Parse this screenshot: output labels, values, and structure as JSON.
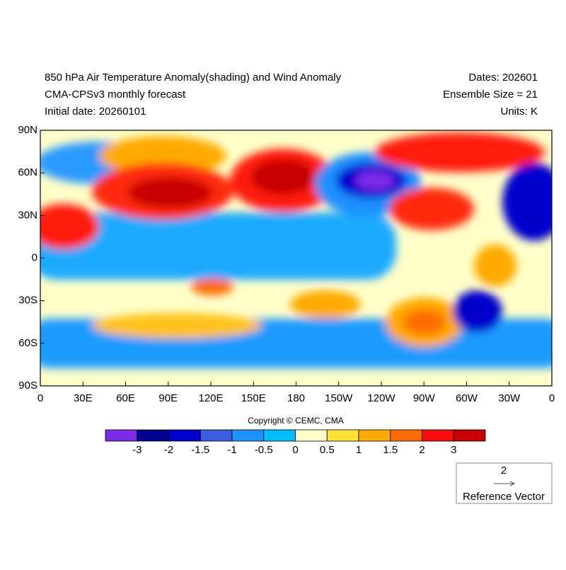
{
  "header": {
    "title": "850 hPa Air Temperature Anomaly(shading) and Wind Anomaly",
    "subtitle": "CMA-CPSv3 monthly forecast",
    "initial_date": "Initial date: 20260101",
    "dates": "Dates: 202601",
    "ensemble": "Ensemble Size = 21",
    "units": "Units: K"
  },
  "map": {
    "xticks": [
      "0",
      "30E",
      "60E",
      "90E",
      "120E",
      "150E",
      "180",
      "150W",
      "120W",
      "90W",
      "60W",
      "30W",
      "0"
    ],
    "yticks": [
      "90N",
      "60N",
      "30N",
      "0",
      "30S",
      "60S",
      "90S"
    ]
  },
  "copyright": "Copyright © CEMC, CMA",
  "colorbar": {
    "colors": [
      "#7b2ae6",
      "#00008f",
      "#0000cd",
      "#3a5fdc",
      "#1e90ff",
      "#00bfff",
      "#ffffc8",
      "#ffe135",
      "#ffaa00",
      "#ff6a00",
      "#ff0a0a",
      "#c80000"
    ],
    "labels": [
      "-3",
      "-2",
      "-1.5",
      "-1",
      "-0.5",
      "0",
      "0.5",
      "1",
      "1.5",
      "2",
      "3"
    ]
  },
  "reference_vector": {
    "value": "2",
    "label": "Reference Vector"
  }
}
